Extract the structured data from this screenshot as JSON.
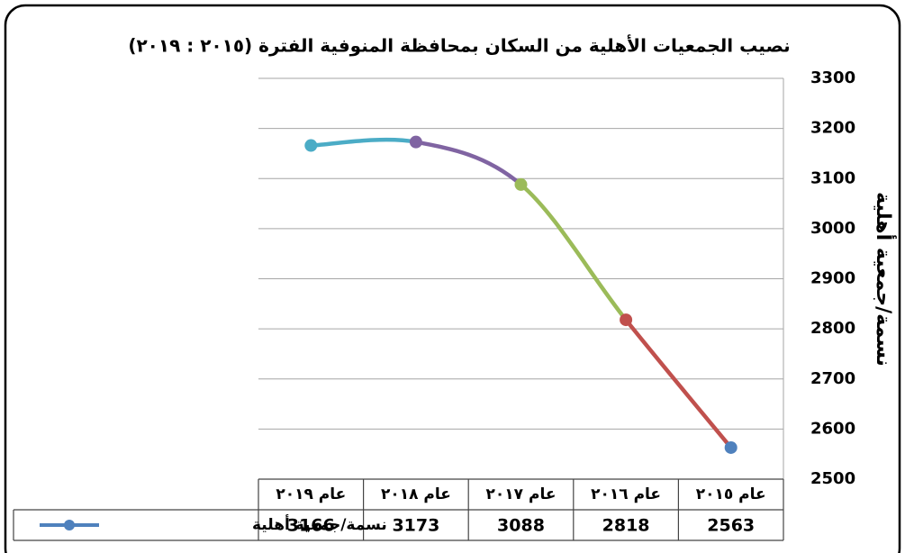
{
  "chart_data": {
    "type": "line",
    "title": "نصيب الجمعيات الأهلية من السكان  بمحافظة المنوفية الفترة (٢٠١٥ : ٢٠١٩)",
    "y_label": "نسمة/جمعية أهلية",
    "categories": [
      "عام ٢٠١٥",
      "عام ٢٠١٦",
      "عام ٢٠١٧",
      "عام ٢٠١٨",
      "عام ٢٠١٩"
    ],
    "series": [
      {
        "name": "نسمة/جمعية أهلية",
        "color": "#4f81bd",
        "values": [
          2563,
          2818,
          3088,
          3173,
          3166
        ]
      }
    ],
    "marker_colors": [
      "#4f81bd",
      "#c0504d",
      "#9bbb59",
      "#8064a2",
      "#4bacc6"
    ],
    "ylim": [
      2500,
      3300
    ],
    "yticks": [
      2500,
      2600,
      2700,
      2800,
      2900,
      3000,
      3100,
      3200,
      3300
    ],
    "grid": true,
    "data_table": true
  }
}
